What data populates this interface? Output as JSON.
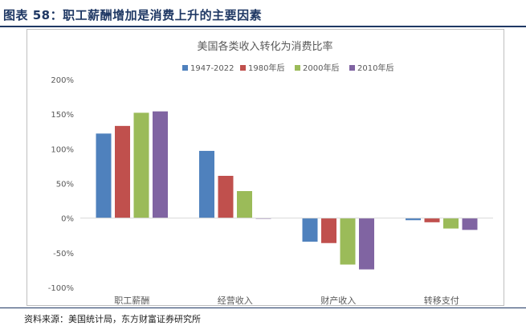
{
  "figure": {
    "caption": "图表 58：职工薪酬增加是消费上升的主要因素",
    "source": "资料来源：美国统计局，东方财富证券研究所"
  },
  "chart_data": {
    "type": "bar",
    "title": "美国各类收入转化为消费比率",
    "categories": [
      "职工薪酬",
      "经营收入",
      "财产收入",
      "转移支付"
    ],
    "series": [
      {
        "name": "1947-2022",
        "color": "#4f81bd",
        "values": [
          122,
          97,
          -34,
          -3
        ]
      },
      {
        "name": "1980年后",
        "color": "#c0504d",
        "values": [
          133,
          61,
          -36,
          -6
        ]
      },
      {
        "name": "2000年后",
        "color": "#9bbb59",
        "values": [
          152,
          39,
          -67,
          -15
        ]
      },
      {
        "name": "2010年后",
        "color": "#8064a2",
        "values": [
          154,
          -1,
          -74,
          -17
        ]
      }
    ],
    "ylim": [
      -100,
      200
    ],
    "yticks": [
      -100,
      -50,
      0,
      50,
      100,
      150,
      200
    ],
    "ytick_labels": [
      "-100%",
      "-50%",
      "0%",
      "50%",
      "100%",
      "150%",
      "200%"
    ],
    "legend_position": "top",
    "grid": false,
    "xlabel": "",
    "ylabel": ""
  }
}
